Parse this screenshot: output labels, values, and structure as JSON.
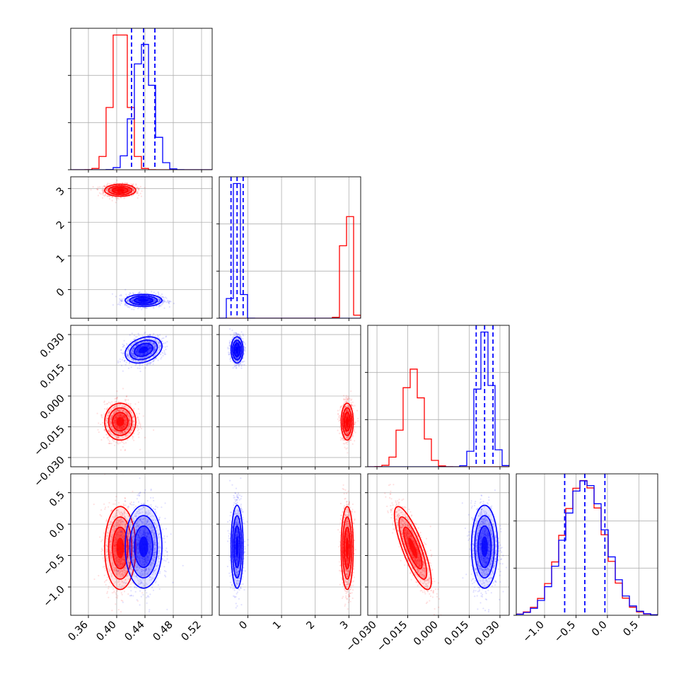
{
  "chart_data": {
    "type": "corner",
    "title": "",
    "axis_labels": [
      "",
      "",
      "",
      ""
    ],
    "grid": true,
    "legend": "none",
    "ranges": [
      [
        0.335,
        0.535
      ],
      [
        -0.85,
        3.35
      ],
      [
        -0.0345,
        0.0345
      ],
      [
        -1.45,
        0.8
      ]
    ],
    "ticks": [
      {
        "values": [
          0.36,
          0.4,
          0.44,
          0.48,
          0.52
        ],
        "labels": [
          "0.36",
          "0.40",
          "0.44",
          "0.48",
          "0.52"
        ]
      },
      {
        "values": [
          0,
          1,
          2,
          3
        ],
        "labels": [
          "0",
          "1",
          "2",
          "3"
        ]
      },
      {
        "values": [
          -0.03,
          -0.015,
          0.0,
          0.015,
          0.03
        ],
        "labels": [
          "−0.030",
          "−0.015",
          "0.000",
          "0.015",
          "0.030"
        ]
      },
      {
        "values": [
          -1.0,
          -0.5,
          0.0,
          0.5
        ],
        "labels": [
          "−1.0",
          "−0.5",
          "0.0",
          "0.5"
        ]
      }
    ],
    "series": [
      {
        "color": "#ff0000",
        "mean": [
          0.405,
          2.95,
          -0.0125,
          -0.38
        ],
        "std": [
          0.011,
          0.09,
          0.0045,
          0.33
        ],
        "corr": [
          [
            1,
            0,
            0,
            0
          ],
          [
            0,
            1,
            0,
            0
          ],
          [
            0,
            0,
            1,
            -0.8
          ],
          [
            0,
            0,
            -0.8,
            1
          ]
        ]
      },
      {
        "color": "#0000ff",
        "mean": [
          0.438,
          -0.32,
          0.0225,
          -0.36
        ],
        "std": [
          0.013,
          0.09,
          0.0032,
          0.33
        ],
        "corr": [
          [
            1,
            0,
            0.3,
            0
          ],
          [
            0,
            1,
            0,
            0
          ],
          [
            0.3,
            0,
            1,
            0
          ],
          [
            0,
            0,
            0,
            1
          ]
        ]
      }
    ],
    "quantiles": [
      {
        "color": "#0000ff",
        "values": [
          0.421,
          0.438,
          0.454
        ]
      },
      {
        "color": "#0000ff",
        "values": [
          -0.5,
          -0.32,
          -0.14
        ]
      },
      {
        "color": "#0000ff",
        "values": [
          0.0184,
          0.0225,
          0.0266
        ]
      },
      {
        "color": "#0000ff",
        "values": [
          -0.68,
          -0.36,
          -0.04
        ]
      }
    ]
  }
}
